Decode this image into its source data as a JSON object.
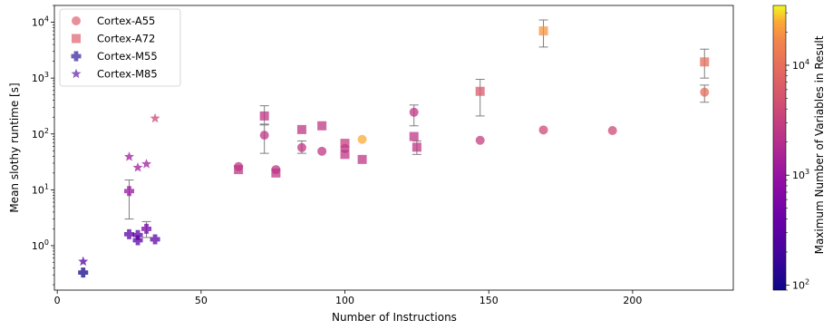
{
  "chart_data": {
    "type": "scatter",
    "xlabel": "Number of Instructions",
    "ylabel": "Mean slothy runtime [s]",
    "y_scale": "log",
    "xlim": [
      -1,
      235
    ],
    "ylim": [
      0.16,
      20000
    ],
    "x_ticks": [
      "0",
      "50",
      "100",
      "150",
      "200"
    ],
    "x_tick_values": [
      0,
      50,
      100,
      150,
      200
    ],
    "y_ticks": [
      {
        "base": "10",
        "exp": "0",
        "value": 1
      },
      {
        "base": "10",
        "exp": "1",
        "value": 10
      },
      {
        "base": "10",
        "exp": "2",
        "value": 100
      },
      {
        "base": "10",
        "exp": "3",
        "value": 1000
      },
      {
        "base": "10",
        "exp": "4",
        "value": 10000
      }
    ],
    "grid": false,
    "legend_position": "top-left",
    "colorbar": {
      "label": "Maximum Number of Variables in Result",
      "scale": "log",
      "range": [
        90,
        35000
      ],
      "colormap": "plasma",
      "ticks": [
        {
          "base": "10",
          "exp": "2",
          "value": 100
        },
        {
          "base": "10",
          "exp": "3",
          "value": 1000
        },
        {
          "base": "10",
          "exp": "4",
          "value": 10000
        }
      ]
    },
    "series": [
      {
        "name": "Cortex-A55",
        "marker": "circle",
        "points": [
          {
            "x": 63,
            "y": 26,
            "c": 2500
          },
          {
            "x": 72,
            "y": 95,
            "c": 2500,
            "err": [
              45,
              145
            ]
          },
          {
            "x": 76,
            "y": 23,
            "c": 2500
          },
          {
            "x": 85,
            "y": 57,
            "c": 2500,
            "err": [
              45,
              75
            ]
          },
          {
            "x": 92,
            "y": 49,
            "c": 2500
          },
          {
            "x": 100,
            "y": 55,
            "c": 2500
          },
          {
            "x": 106,
            "y": 80,
            "c": 25000
          },
          {
            "x": 124,
            "y": 245,
            "c": 2500,
            "err": [
              140,
              330
            ]
          },
          {
            "x": 147,
            "y": 77,
            "c": 3000
          },
          {
            "x": 169,
            "y": 118,
            "c": 4000
          },
          {
            "x": 193,
            "y": 115,
            "c": 4000
          },
          {
            "x": 225,
            "y": 560,
            "c": 10000,
            "err": [
              370,
              750
            ]
          }
        ]
      },
      {
        "name": "Cortex-A72",
        "marker": "square",
        "points": [
          {
            "x": 63,
            "y": 23,
            "c": 2500
          },
          {
            "x": 72,
            "y": 210,
            "c": 2500,
            "err": [
              150,
              320
            ]
          },
          {
            "x": 76,
            "y": 20,
            "c": 2500
          },
          {
            "x": 85,
            "y": 120,
            "c": 2500
          },
          {
            "x": 92,
            "y": 140,
            "c": 2500
          },
          {
            "x": 100,
            "y": 68,
            "c": 3000
          },
          {
            "x": 100,
            "y": 43,
            "c": 2500
          },
          {
            "x": 106,
            "y": 35,
            "c": 2500
          },
          {
            "x": 124,
            "y": 90,
            "c": 2500
          },
          {
            "x": 125,
            "y": 58,
            "c": 2500,
            "err": [
              43,
              75
            ]
          },
          {
            "x": 147,
            "y": 580,
            "c": 6000,
            "err": [
              210,
              950
            ]
          },
          {
            "x": 169,
            "y": 7000,
            "c": 20000,
            "err": [
              3600,
              11000
            ]
          },
          {
            "x": 225,
            "y": 1950,
            "c": 10000,
            "err": [
              1000,
              3300
            ]
          }
        ]
      },
      {
        "name": "Cortex-M55",
        "marker": "plus",
        "points": [
          {
            "x": 9,
            "y": 0.33,
            "c": 100
          },
          {
            "x": 25,
            "y": 9.5,
            "c": 1000,
            "err": [
              3,
              15
            ]
          },
          {
            "x": 25,
            "y": 1.6,
            "c": 300
          },
          {
            "x": 28,
            "y": 1.55,
            "c": 300
          },
          {
            "x": 28,
            "y": 1.25,
            "c": 300
          },
          {
            "x": 31,
            "y": 2.0,
            "c": 500,
            "err": [
              1.4,
              2.7
            ]
          },
          {
            "x": 34,
            "y": 1.3,
            "c": 300
          }
        ]
      },
      {
        "name": "Cortex-M85",
        "marker": "star",
        "points": [
          {
            "x": 9,
            "y": 0.52,
            "c": 250
          },
          {
            "x": 25,
            "y": 39,
            "c": 1200
          },
          {
            "x": 28,
            "y": 25,
            "c": 1200
          },
          {
            "x": 31,
            "y": 29,
            "c": 1200
          },
          {
            "x": 34,
            "y": 190,
            "c": 4000
          }
        ]
      }
    ]
  }
}
